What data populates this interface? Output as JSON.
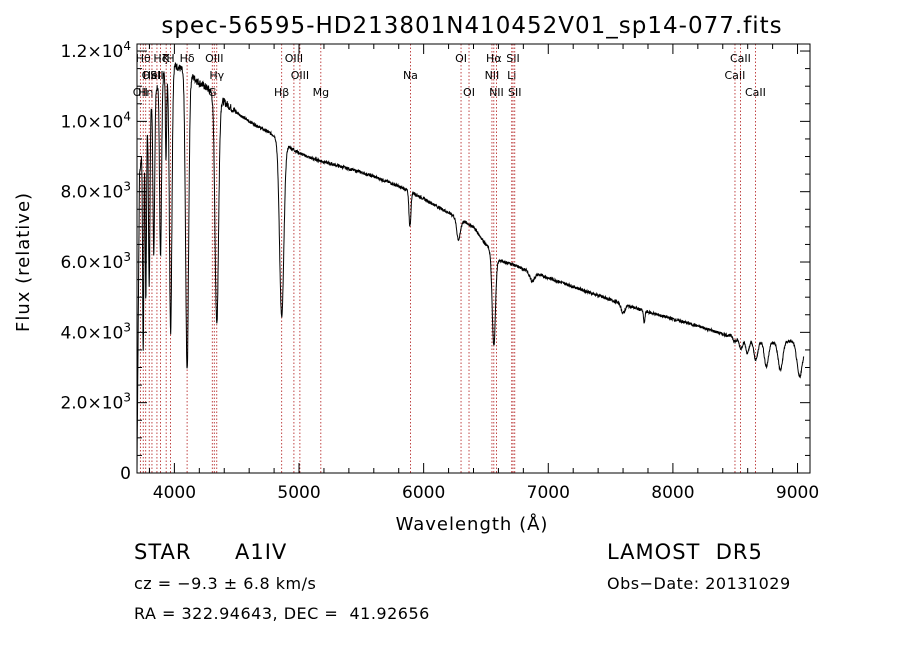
{
  "chart_data": {
    "type": "line",
    "title": "spec-56595-HD213801N410452V01_sp14-077.fits",
    "xlabel": "Wavelength (Å)",
    "ylabel": "Flux (relative)",
    "xlim": [
      3700,
      9100
    ],
    "ylim": [
      0,
      12200
    ],
    "xticks": [
      {
        "value": 4000,
        "label": "4000"
      },
      {
        "value": 5000,
        "label": "5000"
      },
      {
        "value": 6000,
        "label": "6000"
      },
      {
        "value": 7000,
        "label": "7000"
      },
      {
        "value": 8000,
        "label": "8000"
      },
      {
        "value": 9000,
        "label": "9000"
      }
    ],
    "yticks": [
      {
        "value": 0,
        "mant": "0",
        "exp": ""
      },
      {
        "value": 2000,
        "mant": "2.0×10",
        "exp": "3"
      },
      {
        "value": 4000,
        "mant": "4.0×10",
        "exp": "3"
      },
      {
        "value": 6000,
        "mant": "6.0×10",
        "exp": "3"
      },
      {
        "value": 8000,
        "mant": "8.0×10",
        "exp": "3"
      },
      {
        "value": 10000,
        "mant": "1.0×10",
        "exp": "4"
      },
      {
        "value": 12000,
        "mant": "1.2×10",
        "exp": "4"
      }
    ],
    "spectrum": {
      "continuum": [
        [
          3700,
          0
        ],
        [
          3720,
          8500
        ],
        [
          3760,
          9800
        ],
        [
          3800,
          10400
        ],
        [
          3850,
          10900
        ],
        [
          3900,
          11300
        ],
        [
          3950,
          11500
        ],
        [
          4000,
          11600
        ],
        [
          4050,
          11500
        ],
        [
          4100,
          11400
        ],
        [
          4150,
          11250
        ],
        [
          4200,
          11100
        ],
        [
          4300,
          10850
        ],
        [
          4400,
          10550
        ],
        [
          4500,
          10250
        ],
        [
          4600,
          10000
        ],
        [
          4700,
          9800
        ],
        [
          4800,
          9600
        ],
        [
          4900,
          9320
        ],
        [
          5000,
          9100
        ],
        [
          5100,
          8950
        ],
        [
          5200,
          8850
        ],
        [
          5300,
          8750
        ],
        [
          5400,
          8650
        ],
        [
          5500,
          8550
        ],
        [
          5600,
          8430
        ],
        [
          5700,
          8300
        ],
        [
          5800,
          8150
        ],
        [
          5900,
          8000
        ],
        [
          6000,
          7800
        ],
        [
          6100,
          7600
        ],
        [
          6200,
          7400
        ],
        [
          6300,
          7200
        ],
        [
          6400,
          7000
        ],
        [
          6500,
          6500
        ],
        [
          6600,
          6050
        ],
        [
          6700,
          5950
        ],
        [
          6800,
          5800
        ],
        [
          7000,
          5550
        ],
        [
          7200,
          5300
        ],
        [
          7400,
          5050
        ],
        [
          7600,
          4800
        ],
        [
          7800,
          4580
        ],
        [
          8000,
          4380
        ],
        [
          8200,
          4180
        ],
        [
          8400,
          3950
        ],
        [
          8600,
          3800
        ],
        [
          8800,
          3700
        ],
        [
          8950,
          3750
        ],
        [
          9000,
          3700
        ],
        [
          9050,
          3500
        ]
      ],
      "absorption": [
        {
          "center": 3750,
          "depth": 6000,
          "width": 5
        },
        {
          "center": 3771,
          "depth": 5000,
          "width": 5
        },
        {
          "center": 3798,
          "depth": 5000,
          "width": 6
        },
        {
          "center": 3835,
          "depth": 4500,
          "width": 7
        },
        {
          "center": 3889,
          "depth": 5000,
          "width": 8
        },
        {
          "center": 3933,
          "depth": 2500,
          "width": 5
        },
        {
          "center": 3970,
          "depth": 7500,
          "width": 10
        },
        {
          "center": 4102,
          "depth": 8500,
          "width": 12
        },
        {
          "center": 4340,
          "depth": 6500,
          "width": 14
        },
        {
          "center": 4861,
          "depth": 5000,
          "width": 17
        },
        {
          "center": 5890,
          "depth": 1000,
          "width": 8
        },
        {
          "center": 6280,
          "depth": 600,
          "width": 15
        },
        {
          "center": 6563,
          "depth": 2600,
          "width": 13
        },
        {
          "center": 6870,
          "depth": 250,
          "width": 20
        },
        {
          "center": 7600,
          "depth": 250,
          "width": 15
        },
        {
          "center": 7770,
          "depth": 350,
          "width": 6
        },
        {
          "center": 8498,
          "depth": 150,
          "width": 12
        },
        {
          "center": 8545,
          "depth": 300,
          "width": 14
        },
        {
          "center": 8598,
          "depth": 400,
          "width": 14
        },
        {
          "center": 8665,
          "depth": 550,
          "width": 16
        },
        {
          "center": 8750,
          "depth": 700,
          "width": 16
        },
        {
          "center": 8863,
          "depth": 800,
          "width": 18
        },
        {
          "center": 9015,
          "depth": 900,
          "width": 20
        }
      ]
    },
    "line_markers": [
      {
        "wave": 3727,
        "label": "OII",
        "row": 3
      },
      {
        "wave": 3750,
        "label": "Hθ",
        "row": 1
      },
      {
        "wave": 3770,
        "label": "Hη",
        "row": 3
      },
      {
        "wave": 3798,
        "label": "OII",
        "row": 2
      },
      {
        "wave": 3820,
        "label": "HeI",
        "row": 2
      },
      {
        "wave": 3860,
        "label": "SII",
        "row": 2
      },
      {
        "wave": 3889,
        "label": "Hζ",
        "row": 1
      },
      {
        "wave": 3934,
        "label": "K",
        "row": 1
      },
      {
        "wave": 3969,
        "label": "H",
        "row": 1
      },
      {
        "wave": 4102,
        "label": "Hδ",
        "row": 1
      },
      {
        "wave": 4304,
        "label": "G",
        "row": 3
      },
      {
        "wave": 4320,
        "label": "OIII",
        "row": 1
      },
      {
        "wave": 4340,
        "label": "Hγ",
        "row": 2
      },
      {
        "wave": 4861,
        "label": "Hβ",
        "row": 3
      },
      {
        "wave": 4959,
        "label": "OIII",
        "row": 1
      },
      {
        "wave": 5007,
        "label": "OIII",
        "row": 2
      },
      {
        "wave": 5175,
        "label": "Mg",
        "row": 3
      },
      {
        "wave": 5894,
        "label": "Na",
        "row": 2
      },
      {
        "wave": 6300,
        "label": "OI",
        "row": 1
      },
      {
        "wave": 6364,
        "label": "OI",
        "row": 3
      },
      {
        "wave": 6548,
        "label": "NII",
        "row": 2
      },
      {
        "wave": 6563,
        "label": "Hα",
        "row": 1
      },
      {
        "wave": 6584,
        "label": "NII",
        "row": 3
      },
      {
        "wave": 6707,
        "label": "Li",
        "row": 2
      },
      {
        "wave": 6717,
        "label": "SII",
        "row": 1
      },
      {
        "wave": 6731,
        "label": "SII",
        "row": 3
      },
      {
        "wave": 8498,
        "label": "CaII",
        "row": 2
      },
      {
        "wave": 8542,
        "label": "CaII",
        "row": 1
      },
      {
        "wave": 8662,
        "label": "CaII",
        "row": 3
      }
    ],
    "colors": {
      "spectrum": "#000000",
      "markers": "#b01818",
      "axis": "#000000"
    },
    "grid": false,
    "legend": false
  },
  "info": {
    "star_type": "STAR",
    "subclass": "A1IV",
    "survey": "LAMOST  DR5",
    "cz": "cz = −9.3 ± 6.8 km/s",
    "obs_date": "Obs−Date: 20131029",
    "coords": "RA = 322.94643, DEC =  41.92656"
  }
}
